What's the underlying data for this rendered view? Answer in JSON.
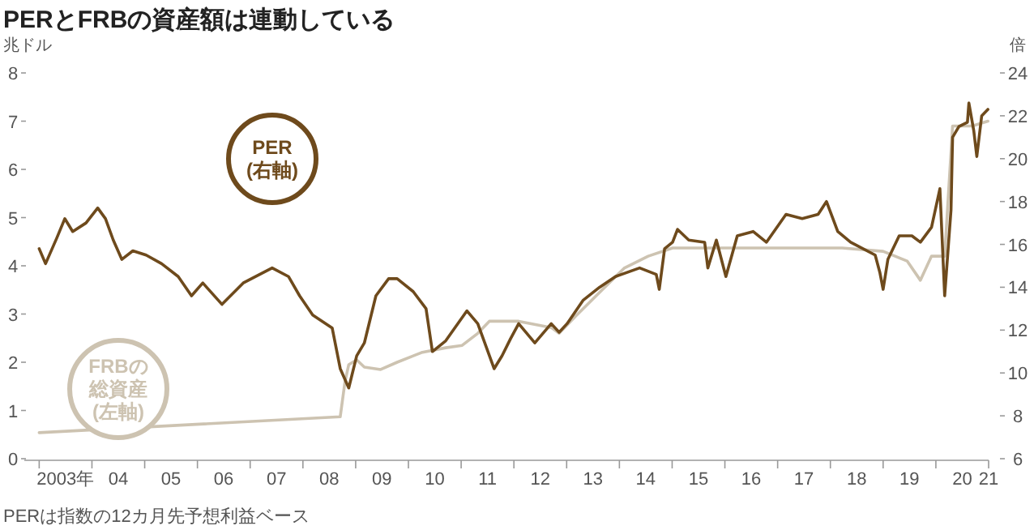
{
  "chart_data": {
    "type": "line",
    "title": "PERとFRBの資産額は連動している",
    "ylabel": "兆ドル",
    "y2label": "倍",
    "annotations": [
      "PERは指数の12カ月先予想利益ベース"
    ],
    "xlim": [
      "2002-09-20",
      "2021-01-01"
    ],
    "xticks": [
      {
        "value": "2003-01-01",
        "label": null
      },
      {
        "value": "2004-01-01",
        "label": null
      },
      {
        "value": "2005-01-01",
        "label": null
      },
      {
        "value": "2006-01-01",
        "label": null
      },
      {
        "value": "2007-01-01",
        "label": null
      },
      {
        "value": "2008-01-01",
        "label": null
      },
      {
        "value": "2009-01-01",
        "label": null
      },
      {
        "value": "2010-01-01",
        "label": null
      },
      {
        "value": "2011-01-01",
        "label": null
      },
      {
        "value": "2012-01-01",
        "label": null
      },
      {
        "value": "2013-01-01",
        "label": null
      },
      {
        "value": "2014-01-01",
        "label": null
      },
      {
        "value": "2015-01-01",
        "label": null
      },
      {
        "value": "2016-01-01",
        "label": null
      },
      {
        "value": "2017-01-01",
        "label": null
      },
      {
        "value": "2018-01-01",
        "label": null
      },
      {
        "value": "2019-01-01",
        "label": null
      },
      {
        "value": "2020-01-01",
        "label": null
      },
      {
        "value": "2021-01-01",
        "label": null
      },
      {
        "value": "2003-07-02",
        "label": "2003年"
      },
      {
        "value": "2004-07-02",
        "label": "04"
      },
      {
        "value": "2005-07-02",
        "label": "05"
      },
      {
        "value": "2006-07-02",
        "label": "06"
      },
      {
        "value": "2007-07-02",
        "label": "07"
      },
      {
        "value": "2008-07-02",
        "label": "08"
      },
      {
        "value": "2009-07-02",
        "label": "09"
      },
      {
        "value": "2010-07-02",
        "label": "10"
      },
      {
        "value": "2011-07-02",
        "label": "11"
      },
      {
        "value": "2012-07-02",
        "label": "12"
      },
      {
        "value": "2013-07-02",
        "label": "13"
      },
      {
        "value": "2014-07-02",
        "label": "14"
      },
      {
        "value": "2015-07-02",
        "label": "15"
      },
      {
        "value": "2016-07-02",
        "label": "16"
      },
      {
        "value": "2017-07-02",
        "label": "17"
      },
      {
        "value": "2018-07-02",
        "label": "18"
      },
      {
        "value": "2019-07-02",
        "label": "19"
      },
      {
        "value": "2020-07-02",
        "label": "20"
      },
      {
        "value": "2021-01-01",
        "label": "21"
      }
    ],
    "ylim": [
      0,
      8
    ],
    "yticks": [
      0,
      1,
      2,
      3,
      4,
      5,
      6,
      7,
      8
    ],
    "y2lim": [
      6,
      24
    ],
    "y2ticks": [
      6,
      8,
      10,
      12,
      14,
      16,
      18,
      20,
      22,
      24
    ],
    "grid": false,
    "series": [
      {
        "name": "FRBの総資産(左軸)",
        "color": "#cdc3b1",
        "axis": "y",
        "x": [
          "2003-01-01",
          "2008-09-16",
          "2008-10-19",
          "2008-11-14",
          "2009-01-08",
          "2009-03-02",
          "2009-06-23",
          "2009-10-15",
          "2010-04-01",
          "2010-09-16",
          "2011-01-08",
          "2011-04-26",
          "2011-07-15",
          "2012-02-03",
          "2012-09-16",
          "2012-11-10",
          "2013-03-02",
          "2013-08-17",
          "2014-02-03",
          "2014-07-19",
          "2015-01-04",
          "2018-03-23",
          "2019-01-01",
          "2019-06-16",
          "2019-09-16",
          "2019-12-02",
          "2020-03-02",
          "2020-04-26",
          "2020-09-09",
          "2020-12-27"
        ],
        "values": [
          0.54,
          0.87,
          1.6,
          1.95,
          2.05,
          1.9,
          1.85,
          2.0,
          2.2,
          2.3,
          2.35,
          2.6,
          2.85,
          2.85,
          2.72,
          2.6,
          2.95,
          3.45,
          3.95,
          4.2,
          4.37,
          4.37,
          4.3,
          4.1,
          3.7,
          4.2,
          4.2,
          6.9,
          6.9,
          7.0
        ]
      },
      {
        "name": "PER(右軸)",
        "color": "#6e4a1c",
        "axis": "y2",
        "x": [
          "2003-01-01",
          "2003-02-14",
          "2003-05-03",
          "2003-06-27",
          "2003-08-21",
          "2003-11-21",
          "2004-02-10",
          "2004-04-04",
          "2004-05-28",
          "2004-07-26",
          "2004-10-11",
          "2005-01-11",
          "2005-04-28",
          "2005-08-21",
          "2005-11-21",
          "2006-02-07",
          "2006-06-20",
          "2006-11-14",
          "2007-06-02",
          "2007-09-23",
          "2007-12-09",
          "2008-03-09",
          "2008-07-22",
          "2008-09-16",
          "2008-11-14",
          "2009-01-08",
          "2009-03-02",
          "2009-05-21",
          "2009-08-17",
          "2009-10-15",
          "2010-02-03",
          "2010-05-03",
          "2010-06-16",
          "2010-09-16",
          "2011-02-10",
          "2011-04-26",
          "2011-08-17",
          "2011-10-11",
          "2011-12-09",
          "2012-02-03",
          "2012-05-25",
          "2012-09-16",
          "2012-11-10",
          "2013-01-04",
          "2013-04-26",
          "2013-08-17",
          "2013-12-05",
          "2014-05-21",
          "2014-09-13",
          "2014-10-04",
          "2014-11-10",
          "2015-01-04",
          "2015-02-07",
          "2015-04-26",
          "2015-08-14",
          "2015-09-05",
          "2015-11-03",
          "2016-01-08",
          "2016-03-27",
          "2016-07-15",
          "2016-10-15",
          "2017-02-28",
          "2017-06-20",
          "2017-10-08",
          "2017-12-05",
          "2018-02-21",
          "2018-05-21",
          "2018-11-07",
          "2018-12-09",
          "2019-01-01",
          "2019-02-03",
          "2019-04-22",
          "2019-07-19",
          "2019-09-16",
          "2019-12-02",
          "2020-01-29",
          "2020-03-02",
          "2020-04-15",
          "2020-04-26",
          "2020-06-09",
          "2020-08-07",
          "2020-08-17",
          "2020-09-20",
          "2020-10-11",
          "2020-11-14",
          "2020-12-27"
        ],
        "values": [
          15.8,
          15.1,
          16.3,
          17.2,
          16.6,
          17.0,
          17.7,
          17.2,
          16.2,
          15.3,
          15.7,
          15.5,
          15.1,
          14.5,
          13.6,
          14.2,
          13.2,
          14.2,
          14.9,
          14.5,
          13.6,
          12.7,
          12.1,
          10.2,
          9.3,
          10.8,
          11.4,
          13.6,
          14.4,
          14.4,
          13.8,
          13.0,
          11.0,
          11.5,
          12.9,
          12.3,
          10.2,
          10.8,
          11.6,
          12.3,
          11.4,
          12.3,
          11.9,
          12.3,
          13.4,
          14.0,
          14.5,
          14.9,
          14.6,
          13.9,
          15.8,
          16.1,
          16.7,
          16.2,
          16.1,
          14.9,
          16.2,
          14.5,
          16.4,
          16.6,
          16.1,
          17.4,
          17.2,
          17.4,
          18.0,
          16.6,
          16.1,
          15.5,
          14.7,
          13.9,
          15.3,
          16.4,
          16.4,
          16.1,
          16.8,
          18.6,
          13.6,
          17.6,
          21.0,
          21.5,
          21.7,
          22.6,
          21.3,
          20.1,
          22.0,
          22.3
        ]
      }
    ]
  }
}
